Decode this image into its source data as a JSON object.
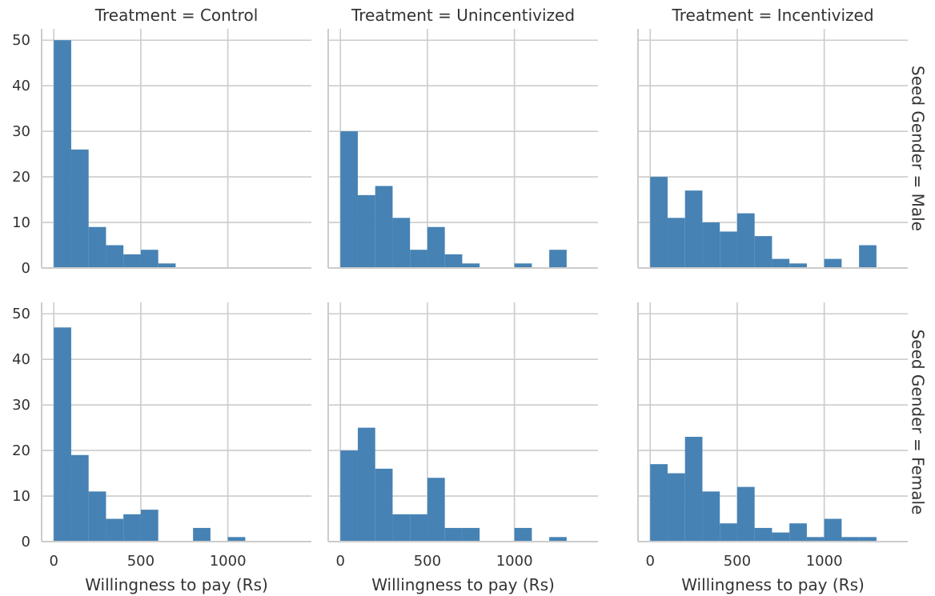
{
  "chart_data": {
    "type": "bar",
    "style": "faceted histogram",
    "bar_color": "#4682b4",
    "grid": true,
    "xlim": [
      -70,
      1480
    ],
    "ylim": [
      0,
      52.5
    ],
    "xticks": [
      0,
      500,
      1000
    ],
    "yticks": [
      0,
      10,
      20,
      30,
      40,
      50
    ],
    "xlabel": "Willingness to pay (Rs)",
    "column_titles": [
      "Treatment = Control",
      "Treatment = Unincentivized",
      "Treatment = Incentivized"
    ],
    "row_titles": [
      "Seed Gender = Male",
      "Seed Gender = Female"
    ],
    "panels": [
      {
        "row": 0,
        "col": 0,
        "bin_width": 100,
        "x": [
          0,
          100,
          200,
          300,
          400,
          500,
          600
        ],
        "values": [
          50,
          26,
          9,
          5,
          3,
          4,
          1
        ]
      },
      {
        "row": 0,
        "col": 1,
        "bin_width": 100,
        "x": [
          0,
          100,
          200,
          300,
          400,
          500,
          600,
          700,
          1000,
          1200
        ],
        "values": [
          30,
          16,
          18,
          11,
          4,
          9,
          3,
          1,
          1,
          4
        ]
      },
      {
        "row": 0,
        "col": 2,
        "bin_width": 100,
        "x": [
          0,
          100,
          200,
          300,
          400,
          500,
          600,
          700,
          800,
          1000,
          1200
        ],
        "values": [
          20,
          11,
          17,
          10,
          8,
          12,
          7,
          2,
          1,
          2,
          5
        ]
      },
      {
        "row": 1,
        "col": 0,
        "bin_width": 100,
        "x": [
          0,
          100,
          200,
          300,
          400,
          500,
          800,
          1000
        ],
        "values": [
          47,
          19,
          11,
          5,
          6,
          7,
          3,
          1
        ]
      },
      {
        "row": 1,
        "col": 1,
        "bin_width": 100,
        "x": [
          0,
          100,
          200,
          300,
          400,
          500,
          600,
          700,
          1000,
          1200
        ],
        "values": [
          20,
          25,
          16,
          6,
          6,
          14,
          3,
          3,
          3,
          1
        ]
      },
      {
        "row": 1,
        "col": 2,
        "bin_width": 100,
        "x": [
          0,
          100,
          200,
          300,
          400,
          500,
          600,
          700,
          800,
          900,
          1000,
          1100,
          1200
        ],
        "values": [
          17,
          15,
          23,
          11,
          4,
          12,
          3,
          2,
          4,
          1,
          5,
          1,
          1
        ]
      }
    ]
  }
}
